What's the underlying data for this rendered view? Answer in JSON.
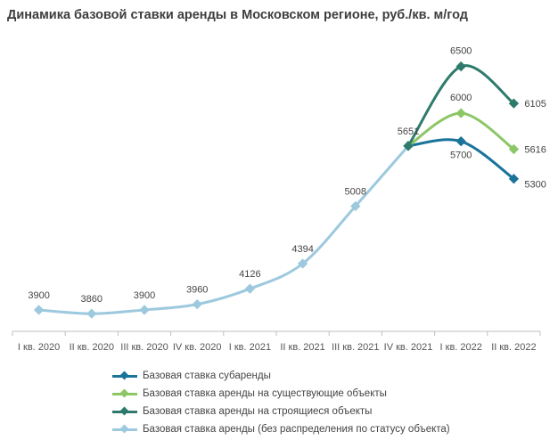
{
  "chart_data": {
    "type": "line",
    "title": "Динамика базовой ставки аренды в Московском регионе, руб./кв. м/год",
    "categories": [
      "I кв. 2020",
      "II кв. 2020",
      "III кв. 2020",
      "IV кв. 2020",
      "I кв. 2021",
      "II кв. 2021",
      "III кв. 2021",
      "IV кв. 2021",
      "I кв. 2022",
      "II кв. 2022"
    ],
    "ylim": [
      3500,
      7000
    ],
    "grid": false,
    "legend_position": "bottom",
    "series": [
      {
        "name": "Базовая ставка аренды (без распределения по статусу объекта)",
        "color": "#9dc9de",
        "values": [
          3900,
          3860,
          3900,
          3960,
          4126,
          4394,
          5008,
          5651,
          null,
          null
        ],
        "labels": [
          "3900",
          "3860",
          "3900",
          "3960",
          "4126",
          "4394",
          "5008",
          "5651",
          null,
          null
        ]
      },
      {
        "name": "Базовая ставка субаренды",
        "color": "#19739b",
        "values": [
          null,
          null,
          null,
          null,
          null,
          null,
          null,
          5651,
          5700,
          5300
        ],
        "labels": [
          null,
          null,
          null,
          null,
          null,
          null,
          null,
          null,
          "5700",
          "5300"
        ]
      },
      {
        "name": "Базовая ставка аренды на существующие объекты",
        "color": "#8cc665",
        "values": [
          null,
          null,
          null,
          null,
          null,
          null,
          null,
          5651,
          6000,
          5616
        ],
        "labels": [
          null,
          null,
          null,
          null,
          null,
          null,
          null,
          null,
          "6000",
          "5616"
        ]
      },
      {
        "name": "Базовая ставка аренды на строящиеся объекты",
        "color": "#2e7a6c",
        "values": [
          null,
          null,
          null,
          null,
          null,
          null,
          null,
          5651,
          6500,
          6105
        ],
        "labels": [
          null,
          null,
          null,
          null,
          null,
          null,
          null,
          null,
          "6500",
          "6105"
        ]
      }
    ],
    "legend_order": [
      1,
      2,
      3,
      0
    ]
  }
}
